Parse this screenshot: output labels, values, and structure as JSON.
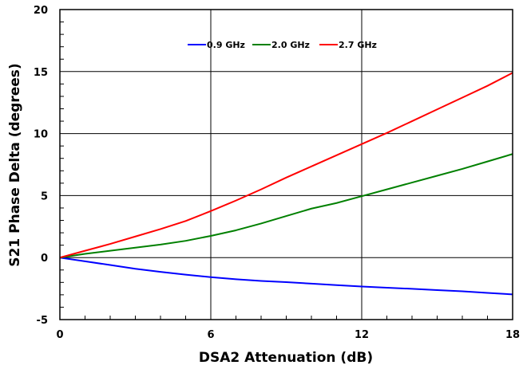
{
  "chart_data": {
    "type": "line",
    "title": "",
    "xlabel": "DSA2 Attenuation (dB)",
    "ylabel": "S21 Phase Delta (degrees)",
    "xlim": [
      0,
      18
    ],
    "ylim": [
      -5,
      20
    ],
    "xticks": [
      0,
      6,
      12,
      18
    ],
    "yticks": [
      -5,
      0,
      5,
      10,
      15,
      20
    ],
    "grid": true,
    "legend_position": "top-center",
    "series": [
      {
        "name": "0.9 GHz",
        "color": "#0000ff",
        "x": [
          0,
          1,
          2,
          3,
          4,
          5,
          6,
          7,
          8,
          9,
          10,
          11,
          12,
          13,
          14,
          15,
          16,
          17,
          18
        ],
        "y": [
          0,
          -0.3,
          -0.6,
          -0.9,
          -1.15,
          -1.38,
          -1.58,
          -1.75,
          -1.88,
          -1.98,
          -2.1,
          -2.22,
          -2.33,
          -2.43,
          -2.52,
          -2.62,
          -2.72,
          -2.85,
          -2.97
        ]
      },
      {
        "name": "2.0 GHz",
        "color": "#008000",
        "x": [
          0,
          1,
          2,
          3,
          4,
          5,
          6,
          7,
          8,
          9,
          10,
          11,
          12,
          13,
          14,
          15,
          16,
          17,
          18
        ],
        "y": [
          0,
          0.3,
          0.55,
          0.8,
          1.05,
          1.35,
          1.75,
          2.2,
          2.75,
          3.35,
          3.95,
          4.4,
          4.95,
          5.5,
          6.05,
          6.6,
          7.15,
          7.75,
          8.35
        ]
      },
      {
        "name": "2.7 GHz",
        "color": "#ff0000",
        "x": [
          0,
          1,
          2,
          3,
          4,
          5,
          6,
          7,
          8,
          9,
          10,
          11,
          12,
          13,
          14,
          15,
          16,
          17,
          18
        ],
        "y": [
          0,
          0.55,
          1.1,
          1.7,
          2.3,
          2.95,
          3.75,
          4.6,
          5.5,
          6.45,
          7.35,
          8.25,
          9.15,
          10.05,
          11.0,
          11.95,
          12.9,
          13.85,
          14.9
        ]
      }
    ]
  }
}
